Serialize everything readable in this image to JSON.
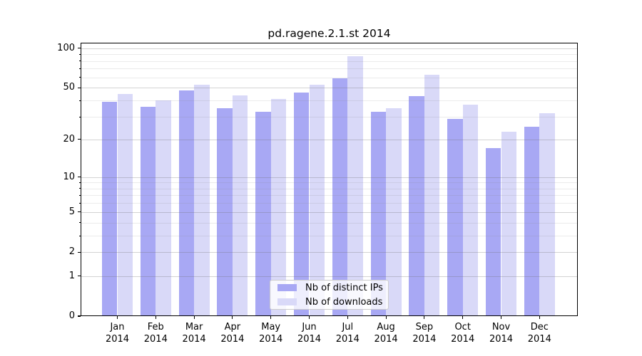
{
  "title": "pd.ragene.2.1.st 2014",
  "colors": {
    "ips": "#a8a8f4",
    "downloads": "#d9d9f8",
    "axis": "#000000",
    "grid_minor": "rgba(130,130,130,0.16)",
    "grid_major": "rgba(110,110,110,0.30)",
    "legend_bg": "rgba(255,255,255,0.8)",
    "legend_border": "#cccccc",
    "text": "#000000"
  },
  "legend": {
    "items": [
      {
        "label": "Nb of distinct IPs",
        "series": "ips"
      },
      {
        "label": "Nb of downloads",
        "series": "downloads"
      }
    ]
  },
  "chart_data": {
    "type": "bar",
    "title": "pd.ragene.2.1.st 2014",
    "categories": [
      "Jan 2014",
      "Feb 2014",
      "Mar 2014",
      "Apr 2014",
      "May 2014",
      "Jun 2014",
      "Jul 2014",
      "Aug 2014",
      "Sep 2014",
      "Oct 2014",
      "Nov 2014",
      "Dec 2014"
    ],
    "series": [
      {
        "name": "Nb of distinct IPs",
        "color_key": "ips",
        "values": [
          39,
          36,
          48,
          35,
          33,
          46,
          59,
          33,
          43,
          29,
          17,
          25
        ]
      },
      {
        "name": "Nb of downloads",
        "color_key": "downloads",
        "values": [
          45,
          40,
          53,
          44,
          41,
          53,
          87,
          35,
          63,
          37,
          23,
          32
        ]
      }
    ],
    "yscale": "log1p",
    "ylim": [
      0,
      110
    ],
    "yticks": [
      100,
      50,
      20,
      10,
      5,
      2,
      1,
      0
    ],
    "minor_grid_values": [
      3,
      4,
      6,
      7,
      8,
      9,
      30,
      40,
      60,
      70,
      80,
      90
    ],
    "grid": "horizontal",
    "legend_position": "lower-center"
  }
}
